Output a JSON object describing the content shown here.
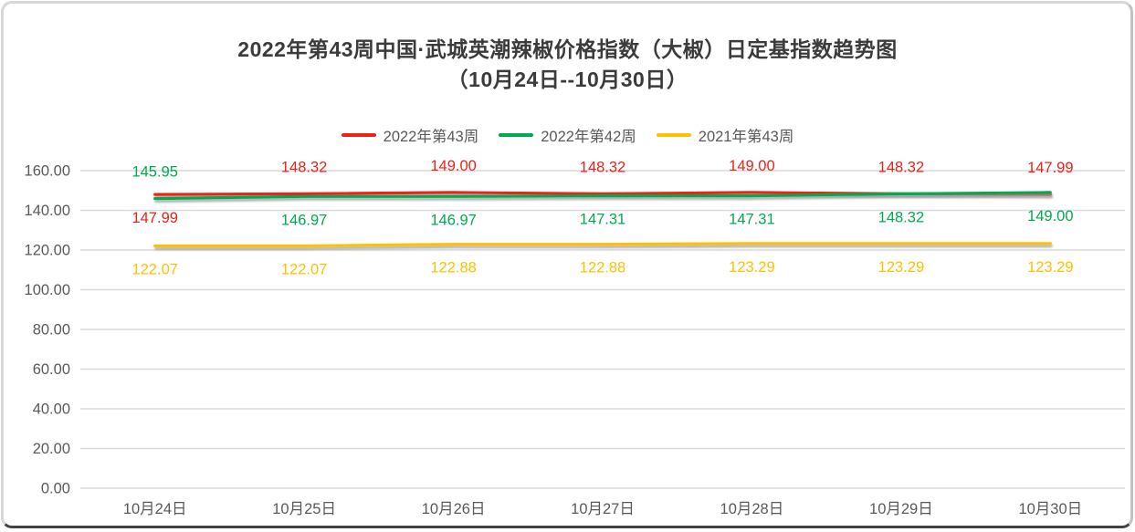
{
  "chart_data": {
    "type": "line",
    "title": "2022年第43周中国·武城英潮辣椒价格指数（大椒）日定基指数趋势图",
    "subtitle": "（10月24日--10月30日）",
    "categories": [
      "10月24日",
      "10月25日",
      "10月26日",
      "10月27日",
      "10月28日",
      "10月29日",
      "10月30日"
    ],
    "series": [
      {
        "name": "2022年第43周",
        "color": "#ee2119",
        "values": [
          147.99,
          148.32,
          149.0,
          148.32,
          149.0,
          148.32,
          147.99
        ],
        "label_positions": [
          "below",
          "above",
          "above",
          "above",
          "above",
          "above",
          "above"
        ]
      },
      {
        "name": "2022年第42周",
        "color": "#00ab50",
        "values": [
          145.95,
          146.97,
          146.97,
          147.31,
          147.31,
          148.32,
          149.0
        ],
        "label_positions": [
          "above",
          "below",
          "below",
          "below",
          "below",
          "below",
          "below"
        ]
      },
      {
        "name": "2021年第43周",
        "color": "#ffc000",
        "values": [
          122.07,
          122.07,
          122.88,
          122.88,
          123.29,
          123.29,
          123.29
        ],
        "label_positions": [
          "below",
          "below",
          "below",
          "below",
          "below",
          "below",
          "below"
        ]
      }
    ],
    "xlabel": "",
    "ylabel": "",
    "ylim": [
      0,
      160
    ],
    "ytick_step": 20,
    "ytick_decimals": 2,
    "grid": true,
    "legend_position": "top",
    "gridline_color": "#d9d9d9",
    "axis_label_color": "#595959",
    "title_color": "#3b3b3b"
  }
}
